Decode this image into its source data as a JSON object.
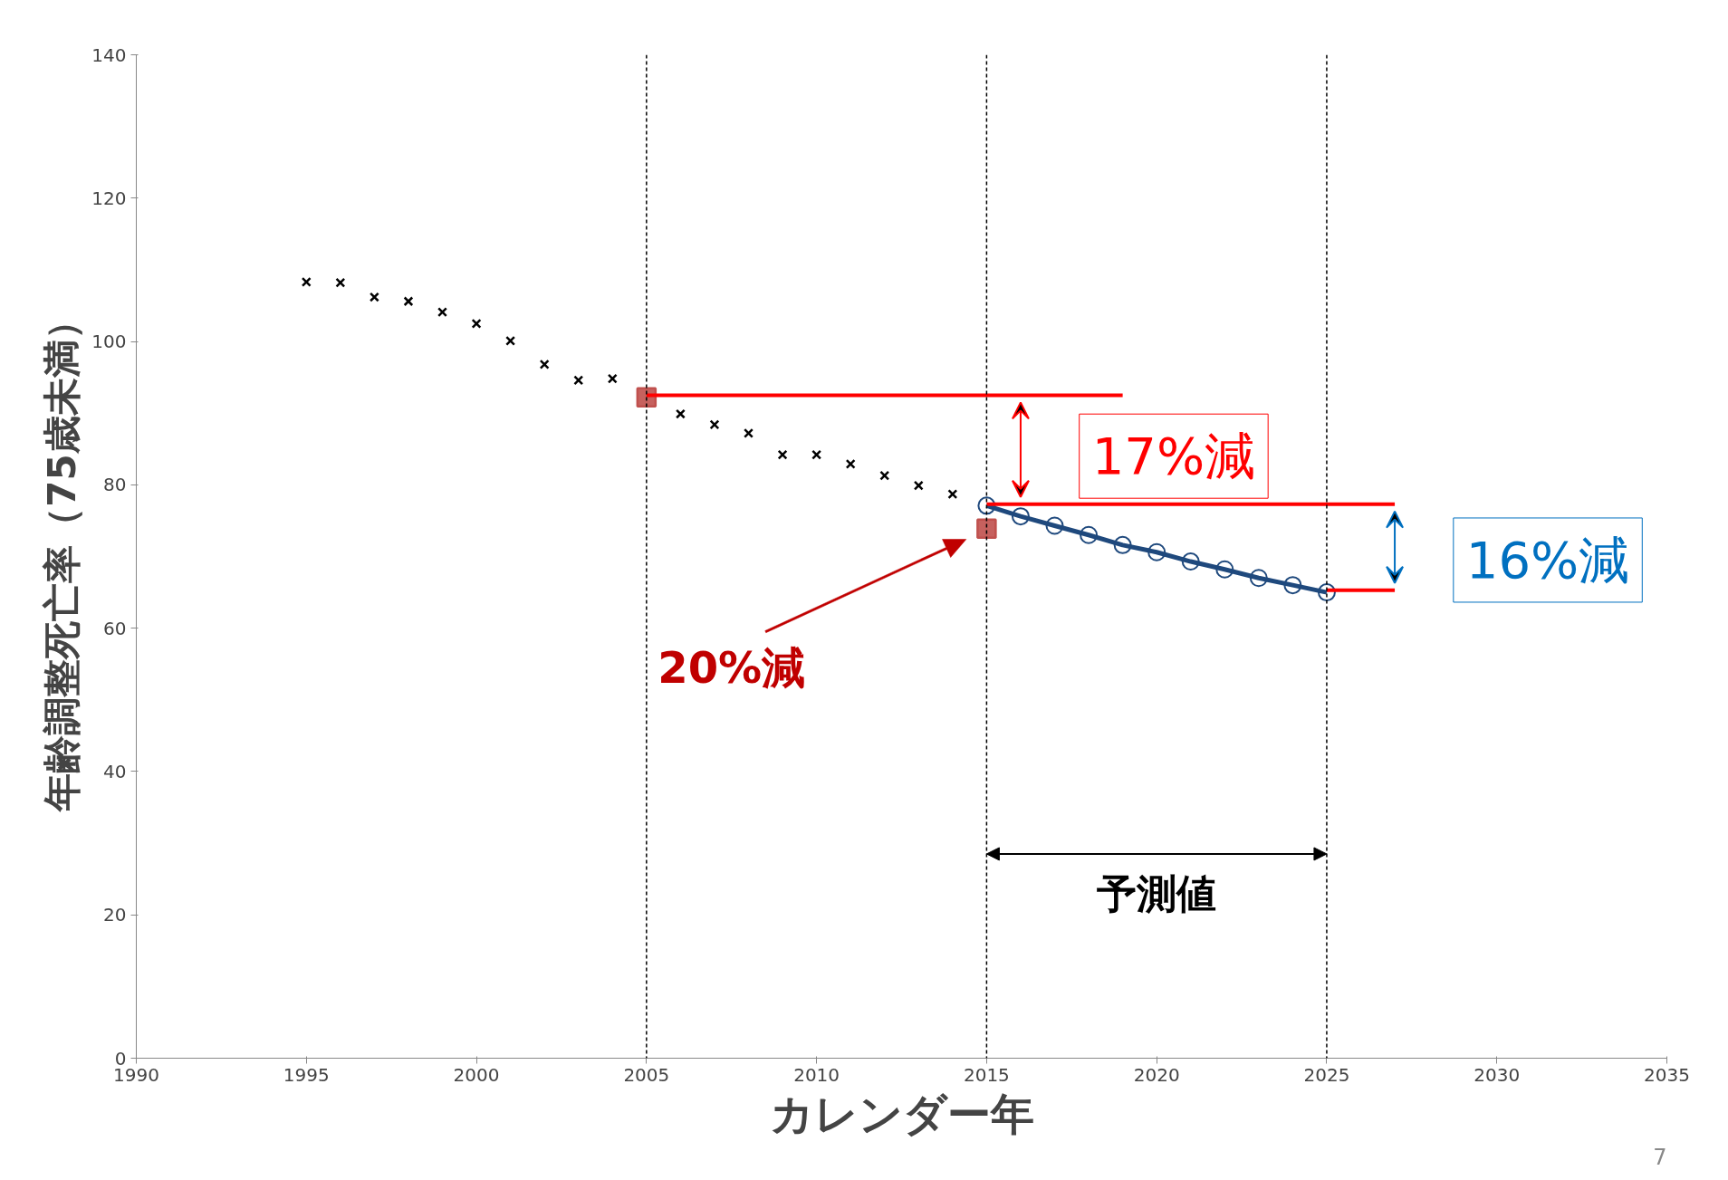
{
  "chart_data": {
    "type": "scatter",
    "xlabel": "カレンダー年",
    "ylabel": "年齢調整死亡率（75歳未満）",
    "xlim": [
      1990,
      2035
    ],
    "xticks": [
      1990,
      1995,
      2000,
      2005,
      2010,
      2015,
      2020,
      2025,
      2030,
      2035
    ],
    "ylim": [
      0,
      140
    ],
    "yticks": [
      0,
      20,
      40,
      60,
      80,
      100,
      120,
      140
    ],
    "grid": false,
    "series": [
      {
        "marker": "cross",
        "color": "#000000",
        "x": [
          1995,
          1996,
          1997,
          1998,
          1999,
          2000,
          2001,
          2002,
          2003,
          2004,
          2006,
          2007,
          2008,
          2009,
          2010,
          2011,
          2012,
          2013,
          2014
        ],
        "values": [
          108.3,
          108.2,
          106.2,
          105.6,
          104.1,
          102.5,
          100.1,
          96.8,
          94.6,
          94.8,
          89.9,
          88.4,
          87.2,
          84.2,
          84.2,
          82.9,
          81.3,
          79.9,
          78.7
        ]
      },
      {
        "marker": "square",
        "color": "#c0504d",
        "x": [
          2005,
          2015
        ],
        "values": [
          92.2,
          73.9
        ]
      },
      {
        "type": "line",
        "marker": "circle",
        "color": "#1f497d",
        "x": [
          2015,
          2016,
          2017,
          2018,
          2019,
          2020,
          2021,
          2022,
          2023,
          2024,
          2025
        ],
        "values": [
          77.1,
          75.6,
          74.3,
          73.0,
          71.6,
          70.6,
          69.3,
          68.2,
          67.0,
          66.0,
          65.0
        ]
      },
      {
        "type": "line",
        "marker": "none",
        "color": "#ff0000",
        "x": [
          2005,
          2019
        ],
        "values": [
          92.5,
          92.5
        ]
      },
      {
        "type": "line",
        "marker": "none",
        "color": "#ff0000",
        "x": [
          2015,
          2027
        ],
        "values": [
          77.3,
          77.3
        ]
      },
      {
        "type": "line",
        "marker": "none",
        "color": "#ff0000",
        "x": [
          2025,
          2027
        ],
        "values": [
          65.3,
          65.3
        ]
      }
    ],
    "ref_lines": [
      {
        "axis": "x",
        "value": 2005,
        "color": "#000000",
        "line_style": "dashed"
      },
      {
        "axis": "x",
        "value": 2015,
        "color": "#000000",
        "line_style": "dashed"
      },
      {
        "axis": "x",
        "value": 2025,
        "color": "#000000",
        "line_style": "dashed"
      }
    ],
    "annotations": [
      "17%減",
      "16%減",
      "20%減",
      "予測値",
      "7"
    ]
  }
}
